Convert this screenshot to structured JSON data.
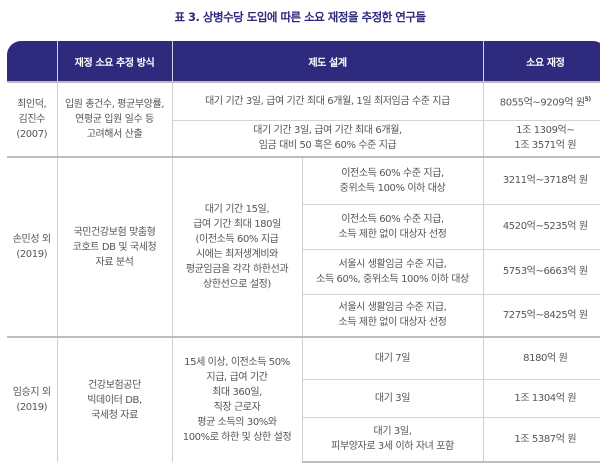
{
  "title": "표 3. 상병수당 도입에 따른 소요 재정을 추정한 연구들",
  "colors": {
    "header_bg": "#2e2a7e",
    "title": "#2e2a7e"
  },
  "headers": [
    "",
    "재정 소요 추정 방식",
    "제도 설계",
    "소요 재정"
  ],
  "studies": [
    {
      "author": "최인덕,\n김진수\n(2007)",
      "method": "입원 총건수, 평균부양률,\n연평균 입원 일수 등\n고려해서 산출",
      "rows": [
        {
          "design": "대기 기간 3일, 급여 기간 최대 6개월, 1일 최저임금 수준 지급",
          "cost": "8055억~9209억 원",
          "footnote": "5)"
        },
        {
          "design": "대기 기간 3일, 급여 기간 최대 6개월,\n임금 대비 50 혹은 60% 수준 지급",
          "cost": "1조 1309억~\n1조 3571억 원"
        }
      ]
    },
    {
      "author": "손민성 외\n(2019)",
      "method": "국민건강보험 맞춤형\n코호트 DB 및 국세청\n자료 분석",
      "common": "대기 기간 15일,\n급여 기간 최대 180일\n(이전소득 60% 지급\n시에는 최저생계비와\n평균임금을 각각 하한선과\n상한선으로 설정)",
      "rows": [
        {
          "design": "이전소득 60% 수준 지급,\n중위소득 100% 이하 대상",
          "cost": "3211억~3718억 원"
        },
        {
          "design": "이전소득 60% 수준 지급,\n소득 제한 없이 대상자 선정",
          "cost": "4520억~5235억 원"
        },
        {
          "design": "서울시 생활임금 수준 지급,\n소득 60%, 중위소득 100% 이하 대상",
          "cost": "5753억~6663억 원"
        },
        {
          "design": "서울시 생활임금 수준 지급,\n소득 제한 없이 대상자 선정",
          "cost": "7275억~8425억 원"
        }
      ]
    },
    {
      "author": "임승지 외\n(2019)",
      "method": "건강보험공단\n빅데이터 DB,\n국세청 자료",
      "common": "15세 이상, 이전소득 50%\n지급, 급여 기간\n최대 360일,\n직장 근로자\n평균 소득의 30%와\n100%로 하한 및 상한 설정",
      "rows": [
        {
          "design": "대기 7일",
          "cost": "8180억 원"
        },
        {
          "design": "대기 3일",
          "cost": "1조 1304억 원"
        },
        {
          "design": "대기 3일,\n피부양자로 3세 이하 자녀 포함",
          "cost": "1조 5387억 원"
        }
      ]
    }
  ]
}
